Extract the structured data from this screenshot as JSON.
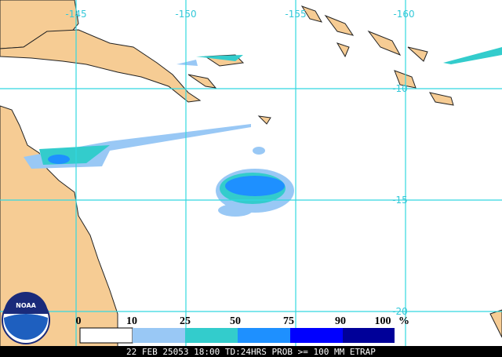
{
  "map": {
    "lon_labels": [
      "-145",
      "-150",
      "-155",
      "-160"
    ],
    "lat_labels": [
      "-10",
      "-15",
      "-20"
    ],
    "legend": {
      "labels": [
        "0",
        "10",
        "25",
        "50",
        "75",
        "90",
        "100"
      ],
      "unit": "%"
    },
    "logo": "NOAA",
    "footer": "22 FEB 25053 18:00 TD:24HRS PROB >= 100 MM ETRAP"
  }
}
